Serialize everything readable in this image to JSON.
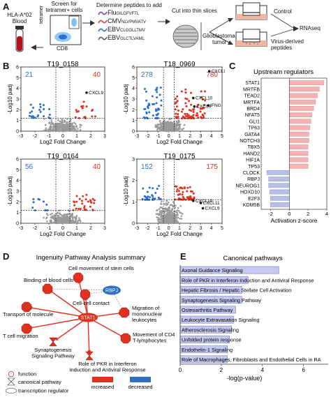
{
  "panelA": {
    "letter": "A",
    "donor": [
      "HLA-A*02",
      "Blood"
    ],
    "screen": [
      "Screen for",
      "tetramer+ cells"
    ],
    "axis_tetramer": "tetramer",
    "axis_cd8": "CD8",
    "determine": "Determine peptides to add",
    "peptides": [
      {
        "virus": "Flu",
        "seq": "GILGFVFTL",
        "color": "#7b3fa0"
      },
      {
        "virus": "CMV",
        "seq": "NLVPMVATV",
        "color": "#e03a2f"
      },
      {
        "virus": "EBV",
        "seq": "CLGGLLTMV",
        "color": "#2a6fd6"
      },
      {
        "virus": "EBV",
        "seq": "GLCTLVAML",
        "color": "#555555"
      }
    ],
    "cut": "Cut into thin slices",
    "tumor": [
      "Glioblastoma",
      "tumor"
    ],
    "control": "Control",
    "virus_derived": [
      "Virus-derived",
      "peptides"
    ],
    "rnaseq": "RNAseq"
  },
  "panelB": {
    "letter": "B",
    "ylabel": "-Log10 padj",
    "xlabel": "Log2 Fold Change",
    "plots": [
      {
        "title": "T19_0158",
        "down": "21",
        "up": "40",
        "genes": [
          "CXCL9"
        ],
        "ymax": 6,
        "yticks": [
          "0",
          "1",
          "2",
          "3",
          "4",
          "5",
          "6"
        ],
        "xticks": [
          "-3",
          "-2",
          "-1",
          "0",
          "1",
          "2",
          "3"
        ]
      },
      {
        "title": "T18_0969",
        "down": "278",
        "up": "780",
        "genes": [
          "CXCL11",
          "CXCL10",
          "CXCL9",
          "IFNG"
        ],
        "ymax": 6,
        "yticks": [
          "0",
          "1",
          "2",
          "3",
          "4",
          "5",
          "6"
        ],
        "xticks": [
          "-3",
          "-2",
          "-1",
          "0",
          "1",
          "2",
          "3",
          "4",
          "5"
        ]
      },
      {
        "title": "T19_0164",
        "down": "56",
        "up": "40",
        "genes": [],
        "ymax": 6,
        "yticks": [
          "0",
          "1",
          "2",
          "3",
          "4",
          "5",
          "6"
        ],
        "xticks": [
          "-3",
          "-2",
          "-1",
          "0",
          "1",
          "2",
          "3"
        ]
      },
      {
        "title": "T19_0175",
        "down": "152",
        "up": "175",
        "genes": [
          "CXCL10",
          "CXCL11",
          "CXCL9"
        ],
        "ymax": 3,
        "yticks": [
          "0",
          "1",
          "2",
          "3"
        ],
        "xticks": [
          "-3",
          "-2",
          "-1",
          "0",
          "1",
          "2",
          "3",
          "4",
          "5"
        ]
      }
    ]
  },
  "panelC": {
    "letter": "C",
    "title": "Upstream regulators",
    "xlabel": "Activation z-score",
    "xticks": [
      "-2",
      "0",
      "2",
      "4"
    ],
    "xlim": [
      -3,
      4
    ],
    "items": [
      {
        "name": "STAT1",
        "z": 3.7
      },
      {
        "name": "MRTFB",
        "z": 3.2
      },
      {
        "name": "TEAD2",
        "z": 3.0
      },
      {
        "name": "MRTFA",
        "z": 2.8
      },
      {
        "name": "BRD4",
        "z": 2.6
      },
      {
        "name": "NFAT5",
        "z": 2.4
      },
      {
        "name": "GLI1",
        "z": 2.3
      },
      {
        "name": "TP63",
        "z": 2.2
      },
      {
        "name": "GATA4",
        "z": 2.1
      },
      {
        "name": "NOTCH3",
        "z": 2.1
      },
      {
        "name": "TBX5",
        "z": 2.0
      },
      {
        "name": "HAND2",
        "z": 2.0
      },
      {
        "name": "HIF1A",
        "z": 2.0
      },
      {
        "name": "TP53",
        "z": 2.0
      },
      {
        "name": "CLOCK",
        "z": -2.4
      },
      {
        "name": "RBPJ",
        "z": -2.2
      },
      {
        "name": "NEUROG1",
        "z": -2.2
      },
      {
        "name": "HOXD10",
        "z": -2.1
      },
      {
        "name": "E2F3",
        "z": -2.0
      },
      {
        "name": "KDM5B",
        "z": -2.0
      }
    ],
    "colors": {
      "pos": "#f5b3b3",
      "neg": "#b8bfe6"
    }
  },
  "panelD": {
    "letter": "D",
    "title": "Ingenuity Pathway Analysis summary",
    "labels": {
      "cell_movement_stem": "Cell movement of stem cells",
      "binding_blood": "Binding of blood cells",
      "rbpj": "RBPJ",
      "transport": "Transport of molecule",
      "cell_contact": "Cell-cell contact",
      "migration_mono": [
        "Migration of",
        "mononuclear",
        "leukocytes"
      ],
      "stat1": "STAT1",
      "t_cell_migration": "T cell migration",
      "synapto": [
        "Synaptogenesis",
        "Signaling Pathway"
      ],
      "movement_cd4": [
        "Movement of CD4+",
        "T-lymphocytes"
      ],
      "pkr": [
        "Role of PKR in Interferon",
        "Induction and Antiviral Response"
      ]
    },
    "legend": {
      "function": "function",
      "canonical": "canonical pathway",
      "regulator": "transcription regulator",
      "increased": "increased",
      "decreased": "decreased"
    },
    "colors": {
      "increased": "#e0301e",
      "decreased": "#2f6fc4"
    }
  },
  "panelE": {
    "letter": "E",
    "title": "Canonical pathways",
    "xlabel": "-log(p-value)",
    "xticks": [
      "0",
      "2",
      "4",
      "6"
    ],
    "xlim": [
      0,
      7.2
    ],
    "items": [
      {
        "name": "Axonal Guidance Signaling",
        "value": 4.8
      },
      {
        "name": "Role of PKR in Interferon Induction and Antiviral Response",
        "value": 3.3
      },
      {
        "name": "Hepatic Fibrosis / Hepatic Stellate Cell Activation",
        "value": 3.0
      },
      {
        "name": "Synaptogenesis Signaling Pathway",
        "value": 3.0
      },
      {
        "name": "Osteoarthritis Pathway",
        "value": 2.7
      },
      {
        "name": "Leukocyte Extravasation Signaling",
        "value": 2.6
      },
      {
        "name": "Atherosclerosis Signaling",
        "value": 2.5
      },
      {
        "name": "Unfolded protein response",
        "value": 2.4
      },
      {
        "name": "Endothelin-1 Signaling",
        "value": 2.3
      },
      {
        "name": "Role of Macrophages, Fibroblasts and Endothelial Cells in RA",
        "value": 2.3
      }
    ],
    "color": "#c5c8ef"
  }
}
